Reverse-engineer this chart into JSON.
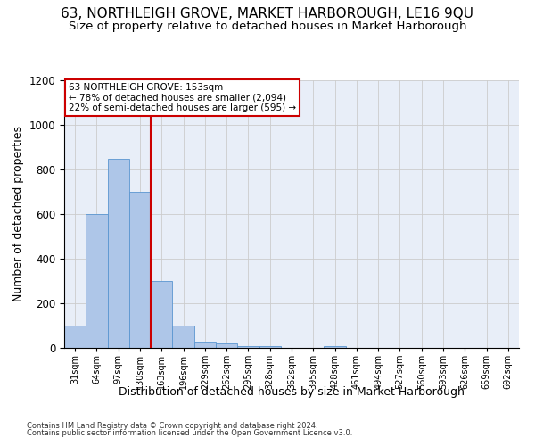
{
  "title1": "63, NORTHLEIGH GROVE, MARKET HARBOROUGH, LE16 9QU",
  "title2": "Size of property relative to detached houses in Market Harborough",
  "xlabel": "Distribution of detached houses by size in Market Harborough",
  "ylabel": "Number of detached properties",
  "footer1": "Contains HM Land Registry data © Crown copyright and database right 2024.",
  "footer2": "Contains public sector information licensed under the Open Government Licence v3.0.",
  "bin_labels": [
    "31sqm",
    "64sqm",
    "97sqm",
    "130sqm",
    "163sqm",
    "196sqm",
    "229sqm",
    "262sqm",
    "295sqm",
    "328sqm",
    "362sqm",
    "395sqm",
    "428sqm",
    "461sqm",
    "494sqm",
    "527sqm",
    "560sqm",
    "593sqm",
    "626sqm",
    "659sqm",
    "692sqm"
  ],
  "bar_values": [
    100,
    600,
    850,
    700,
    300,
    100,
    30,
    20,
    10,
    10,
    0,
    0,
    10,
    0,
    0,
    0,
    0,
    0,
    0,
    0,
    0
  ],
  "bar_color": "#aec6e8",
  "bar_edge_color": "#5a96d0",
  "ref_line_color": "#cc0000",
  "annotation_text": "63 NORTHLEIGH GROVE: 153sqm\n← 78% of detached houses are smaller (2,094)\n22% of semi-detached houses are larger (595) →",
  "annotation_box_color": "#cc0000",
  "ylim": [
    0,
    1200
  ],
  "yticks": [
    0,
    200,
    400,
    600,
    800,
    1000,
    1200
  ],
  "grid_color": "#cccccc",
  "bg_color": "#e8eef8",
  "title1_fontsize": 11,
  "title2_fontsize": 9.5,
  "xlabel_fontsize": 9,
  "ylabel_fontsize": 9
}
